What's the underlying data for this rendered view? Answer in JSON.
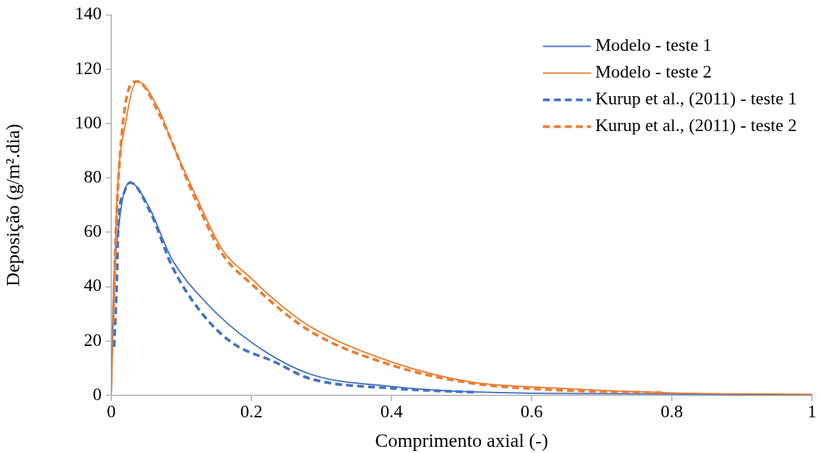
{
  "chart_data": {
    "type": "line",
    "xlabel": "Comprimento axial (-)",
    "ylabel": "Deposição (g/m².dia)",
    "xlim": [
      0,
      1
    ],
    "xticks": [
      0,
      0.2,
      0.4,
      0.6,
      0.8,
      1
    ],
    "ylim": [
      0,
      140
    ],
    "yticks": [
      0,
      20,
      40,
      60,
      80,
      100,
      120,
      140
    ],
    "grid": false,
    "legend": "top right",
    "marker": "none",
    "series": [
      {
        "name": "Modelo - teste 1",
        "color": "#4472c4",
        "line_style": "solid",
        "x": [
          0,
          0.003,
          0.01,
          0.018,
          0.027,
          0.054,
          0.086,
          0.135,
          0.2,
          0.282,
          0.4,
          0.511,
          0.7,
          1
        ],
        "values": [
          0,
          37,
          60.7,
          74.4,
          78.3,
          69.2,
          50.4,
          34.2,
          19.5,
          8,
          3.3,
          1.3,
          0.6,
          0.1
        ]
      },
      {
        "name": "Modelo - teste 2",
        "color": "#ed7d31",
        "line_style": "solid",
        "x": [
          0,
          0.003,
          0.008,
          0.021,
          0.037,
          0.07,
          0.086,
          0.119,
          0.158,
          0.2,
          0.23,
          0.282,
          0.4,
          0.511,
          0.625,
          0.8,
          1
        ],
        "values": [
          0,
          28,
          71,
          101,
          115.5,
          104,
          93.4,
          74.4,
          53.8,
          43,
          35.8,
          25.6,
          12.3,
          5,
          2.8,
          0.9,
          0.4
        ]
      },
      {
        "name": "Kurup et al., (2011) - teste 1",
        "color": "#4472c4",
        "line_style": "dashed",
        "x": [
          0.004,
          0.008,
          0.01,
          0.018,
          0.027,
          0.057,
          0.086,
          0.125,
          0.171,
          0.233,
          0.282,
          0.4,
          0.52
        ],
        "values": [
          17.8,
          42.7,
          62.5,
          74.4,
          78.3,
          66.7,
          47.9,
          31.6,
          19.6,
          12.3,
          6.3,
          2.6,
          1.1
        ]
      },
      {
        "name": "Kurup et al., (2011) - teste 2",
        "color": "#ed7d31",
        "line_style": "dashed",
        "x": [
          0.003,
          0.006,
          0.013,
          0.027,
          0.037,
          0.07,
          0.119,
          0.158,
          0.2,
          0.282,
          0.4,
          0.511,
          0.625,
          0.79
        ],
        "values": [
          27,
          56,
          90,
          114,
          115.5,
          102.7,
          72.8,
          52.2,
          41,
          23.9,
          11.1,
          4.6,
          2.1,
          0.9
        ]
      }
    ]
  }
}
